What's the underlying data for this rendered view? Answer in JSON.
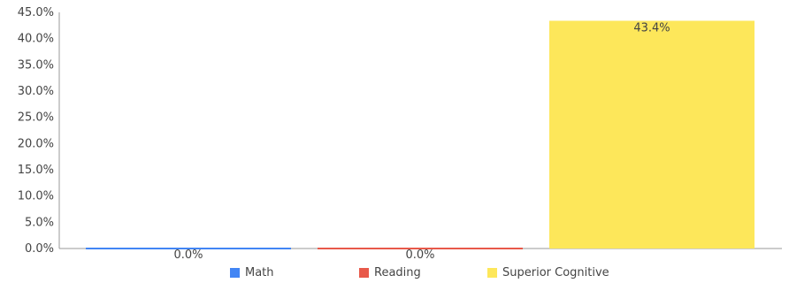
{
  "chart_data": {
    "type": "bar",
    "ylim": [
      0,
      45
    ],
    "yticks": [
      "0.0%",
      "5.0%",
      "10.0%",
      "15.0%",
      "20.0%",
      "25.0%",
      "30.0%",
      "35.0%",
      "40.0%",
      "45.0%"
    ],
    "series": [
      {
        "name": "Math",
        "value": 0.0,
        "label": "0.0%",
        "color": "#4285f4"
      },
      {
        "name": "Reading",
        "value": 0.0,
        "label": "0.0%",
        "color": "#e8594a"
      },
      {
        "name": "Superior Cognitive",
        "value": 43.4,
        "label": "43.4%",
        "color": "#fde75a"
      }
    ],
    "grid": false,
    "legend": "bottom"
  }
}
